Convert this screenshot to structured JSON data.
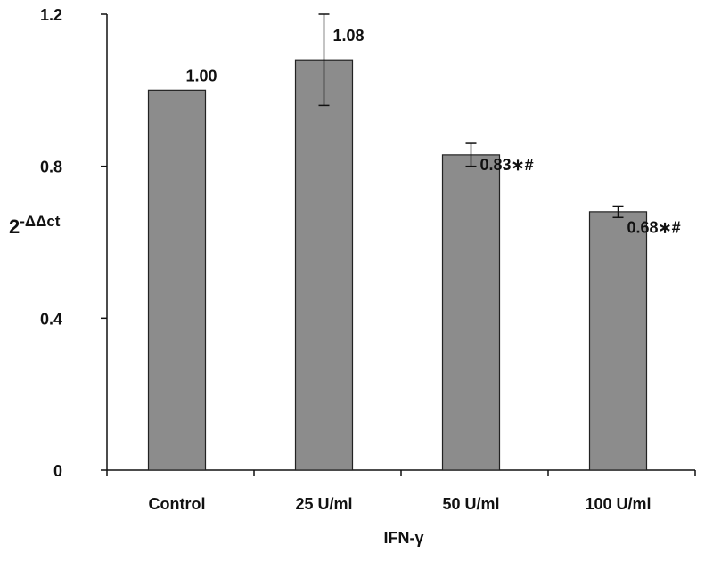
{
  "chart_data": {
    "type": "bar",
    "categories": [
      "Control",
      "25 U/ml",
      "50 U/ml",
      "100 U/ml"
    ],
    "values": [
      1.0,
      1.08,
      0.83,
      0.68
    ],
    "error": [
      0,
      0.12,
      0.03,
      0.015
    ],
    "data_labels": [
      "1.00",
      "1.08",
      "0.83∗#",
      "0.68∗#"
    ],
    "xlabel": "IFN-γ",
    "ylabel_base": "2",
    "ylabel_sup": "-ΔΔct",
    "ylim": [
      0,
      1.2
    ],
    "yticks": [
      0,
      0.4,
      0.8,
      1.2
    ],
    "ytick_labels": [
      "0",
      "0.4",
      "0.8",
      "1.2"
    ],
    "bar_color": "#8c8c8c",
    "grid": false,
    "legend": "none"
  }
}
